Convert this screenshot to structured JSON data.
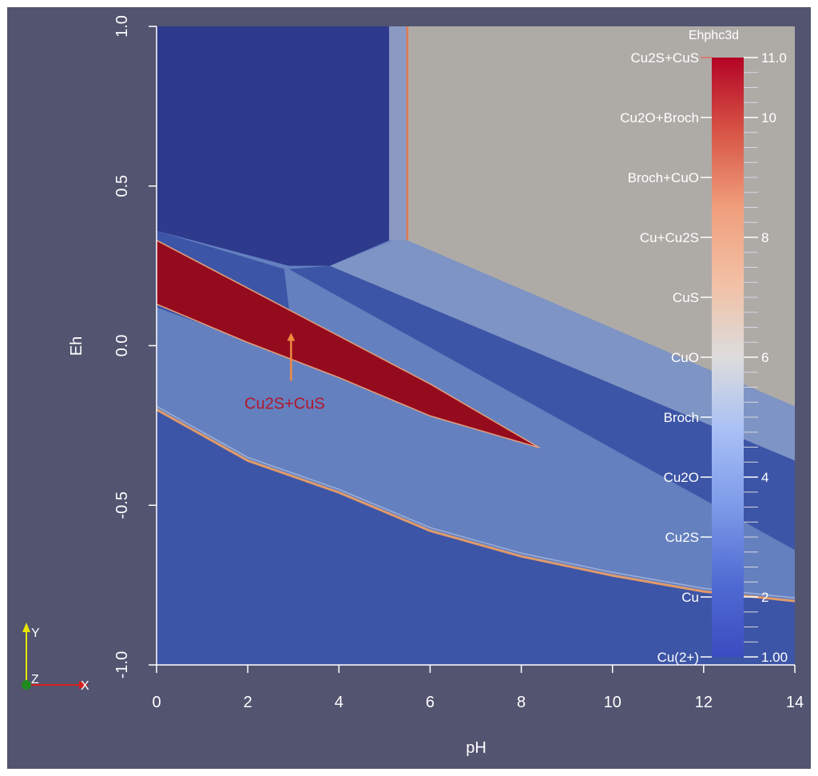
{
  "chart_data": {
    "type": "heatmap",
    "xlabel": "pH",
    "ylabel": "Eh",
    "xlim": [
      0,
      14
    ],
    "ylim": [
      -1.0,
      1.0
    ],
    "x_ticks": [
      "0",
      "2",
      "4",
      "6",
      "8",
      "10",
      "12",
      "14"
    ],
    "y_ticks": [
      "-1.0",
      "-0.5",
      "0.0",
      "0.5",
      "1.0"
    ],
    "y_tick_values": [
      -1.0,
      -0.5,
      0.0,
      0.5,
      1.0
    ],
    "x_tick_values": [
      0,
      2,
      4,
      6,
      8,
      10,
      12,
      14
    ],
    "colorbar": {
      "title": "Ehphc3d",
      "range": [
        1.0,
        11.0
      ],
      "colormap": "cool-to-warm",
      "tick_values": [
        1,
        2,
        4,
        6,
        8,
        10,
        11
      ],
      "tick_labels": [
        "1.00",
        "2",
        "4",
        "6",
        "8",
        "10",
        "11.0"
      ],
      "annotations": [
        {
          "label": "Cu2S+CuS",
          "value": 11
        },
        {
          "label": "Cu2O+Broch",
          "value": 10
        },
        {
          "label": "Broch+CuO",
          "value": 9
        },
        {
          "label": "Cu+Cu2S",
          "value": 8
        },
        {
          "label": "CuS",
          "value": 7
        },
        {
          "label": "CuO",
          "value": 6
        },
        {
          "label": "Broch",
          "value": 5
        },
        {
          "label": "Cu2O",
          "value": 4
        },
        {
          "label": "Cu2S",
          "value": 3
        },
        {
          "label": "Cu",
          "value": 2
        },
        {
          "label": "Cu(2+)",
          "value": 1
        }
      ]
    },
    "regions": [
      {
        "value": 5,
        "color": "#3d55a6",
        "polygon": [
          [
            0,
            -0.2
          ],
          [
            2,
            -0.36
          ],
          [
            4,
            -0.46
          ],
          [
            6,
            -0.58
          ],
          [
            8,
            -0.66
          ],
          [
            10,
            -0.72
          ],
          [
            12,
            -0.77
          ],
          [
            14,
            -0.8
          ],
          [
            14,
            -1.0
          ],
          [
            0,
            -1.0
          ]
        ]
      },
      {
        "value": 4,
        "color": "#6480bf",
        "polygon": [
          [
            0,
            0.12
          ],
          [
            8.4,
            -0.32
          ],
          [
            4,
            -0.08
          ],
          [
            3.0,
            0.0
          ],
          [
            2.8,
            0.24
          ],
          [
            0,
            0.36
          ],
          [
            0,
            0.36
          ],
          [
            14,
            0.36
          ],
          [
            14,
            -0.8
          ],
          [
            12,
            -0.77
          ],
          [
            10,
            -0.72
          ],
          [
            8,
            -0.66
          ],
          [
            6,
            -0.58
          ],
          [
            4,
            -0.46
          ],
          [
            2,
            -0.36
          ],
          [
            0,
            -0.2
          ]
        ]
      },
      {
        "value": 3,
        "color": "#3d55a6",
        "polygon": [
          [
            3.8,
            0.25
          ],
          [
            14,
            -0.36
          ],
          [
            14,
            -0.64
          ],
          [
            2.9,
            0.24
          ]
        ]
      },
      {
        "value": 4,
        "color": "#7e94c4",
        "polygon": [
          [
            3.8,
            0.25
          ],
          [
            5.2,
            0.33
          ],
          [
            5.5,
            0.33
          ],
          [
            14,
            -0.19
          ],
          [
            14,
            -0.36
          ]
        ]
      },
      {
        "value": 1,
        "color": "#2e3a8c",
        "polygon": [
          [
            0,
            1.0
          ],
          [
            5.1,
            1.0
          ],
          [
            5.1,
            0.33
          ],
          [
            3.8,
            0.25
          ],
          [
            2.9,
            0.25
          ],
          [
            0,
            0.36
          ]
        ]
      },
      {
        "value": 4,
        "color": "#8b9ac2",
        "polygon": [
          [
            5.1,
            1.0
          ],
          [
            5.5,
            1.0
          ],
          [
            5.5,
            0.33
          ],
          [
            5.1,
            0.33
          ]
        ]
      },
      {
        "value": 6,
        "color": "#aeaba7",
        "polygon": [
          [
            5.5,
            1.0
          ],
          [
            14,
            1.0
          ],
          [
            14,
            -0.19
          ],
          [
            5.5,
            0.33
          ]
        ]
      },
      {
        "value": 11,
        "color": "#950b1e",
        "polygon": [
          [
            0,
            0.33
          ],
          [
            2,
            0.18
          ],
          [
            4,
            0.03
          ],
          [
            6,
            -0.12
          ],
          [
            7.2,
            -0.22
          ],
          [
            8.4,
            -0.32
          ],
          [
            6,
            -0.22
          ],
          [
            4,
            -0.1
          ],
          [
            2,
            0.01
          ],
          [
            0,
            0.13
          ]
        ]
      }
    ],
    "annotation": {
      "text": "Cu2S+CuS",
      "arrow_to": [
        2.95,
        0.04
      ],
      "arrow_from": [
        2.95,
        -0.11
      ]
    }
  },
  "axes_triad": {
    "y": "Y",
    "z": "Z",
    "x": "X"
  }
}
